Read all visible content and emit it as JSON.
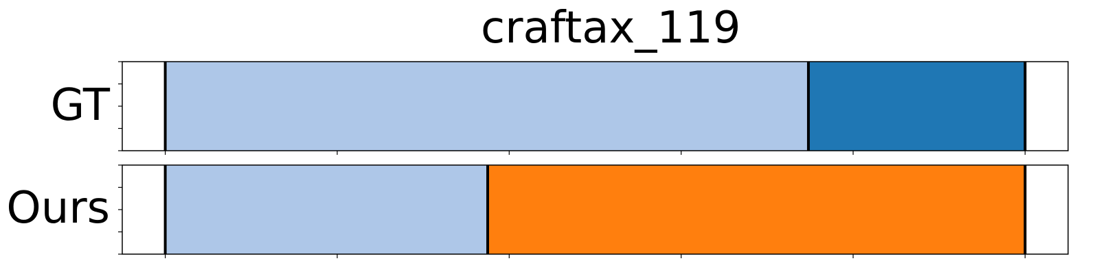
{
  "chart_data": {
    "type": "bar",
    "title": "craftax_119",
    "rows": [
      {
        "label": "GT",
        "segments": [
          {
            "start": 0,
            "end": 0.748,
            "color": "#aec7e8"
          },
          {
            "start": 0.748,
            "end": 1.0,
            "color": "#1f77b4"
          }
        ]
      },
      {
        "label": "Ours",
        "segments": [
          {
            "start": 0,
            "end": 0.375,
            "color": "#aec7e8"
          },
          {
            "start": 0.375,
            "end": 1.0,
            "color": "#ff7f0e"
          }
        ]
      }
    ],
    "xlim": [
      -0.05,
      1.05
    ],
    "x_ticks": [
      0,
      0.2,
      0.4,
      0.6,
      0.8,
      1.0
    ],
    "y_ticks_per_row": 5,
    "tick_labels_shown": false,
    "grid": false,
    "boundary_color": "#000000"
  }
}
